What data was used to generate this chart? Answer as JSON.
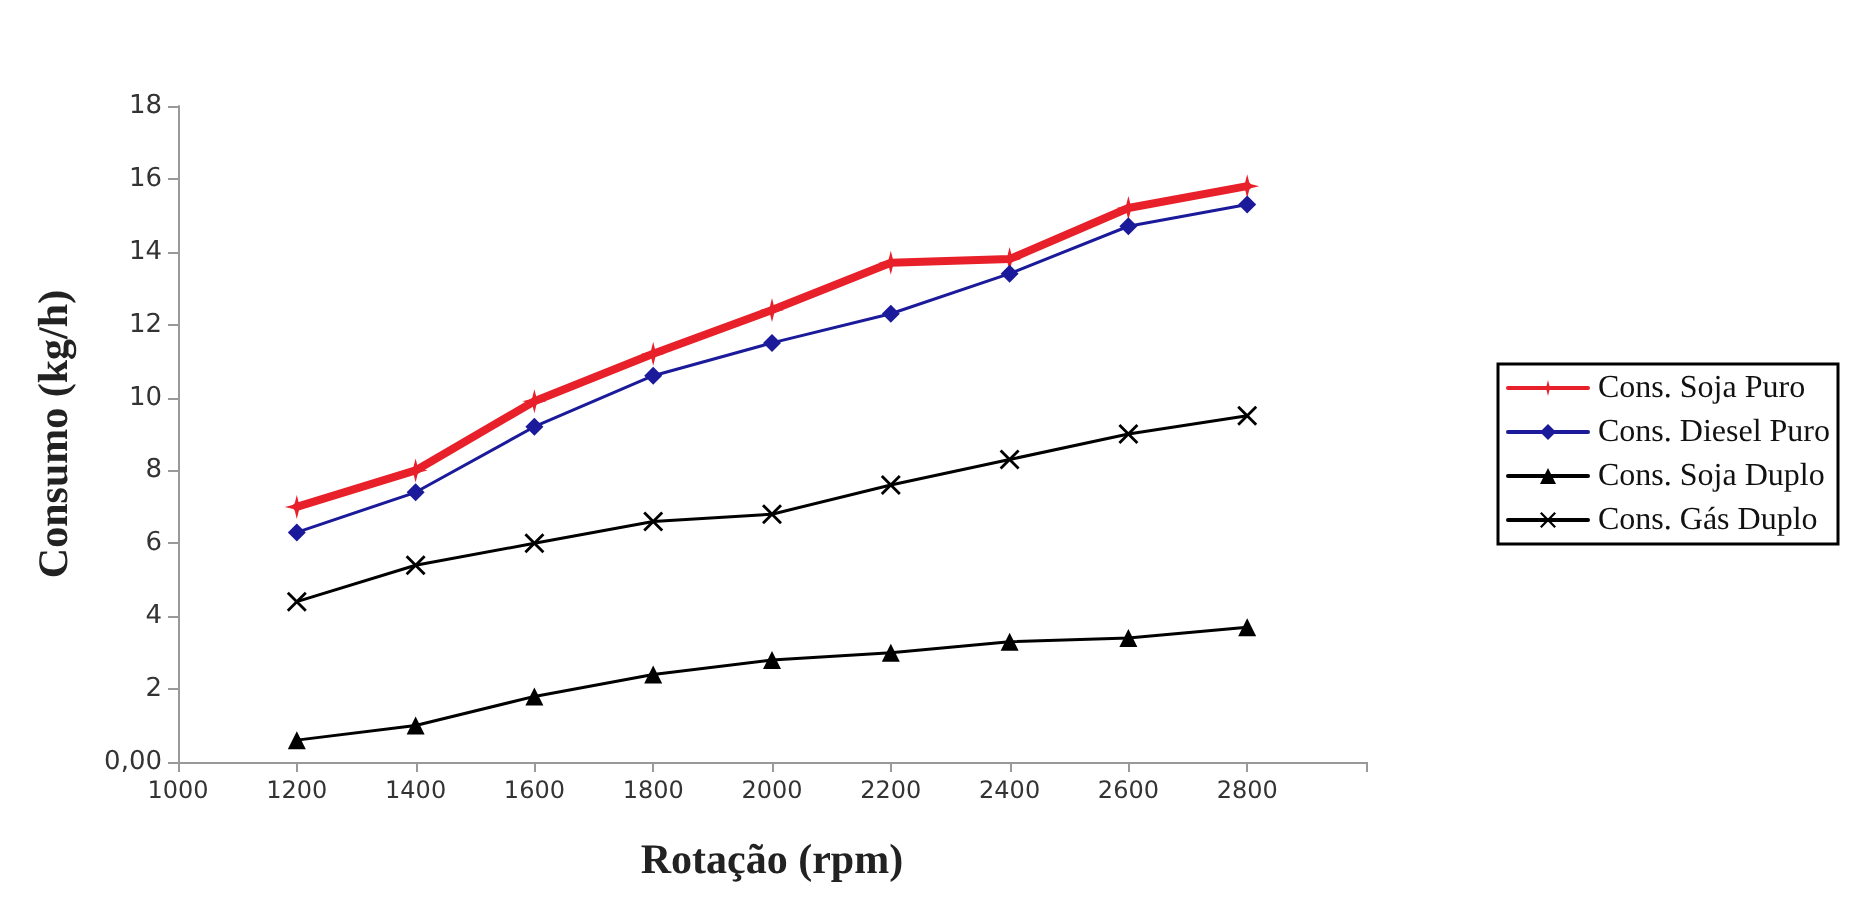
{
  "chart_data": {
    "type": "line",
    "xlabel": "Rotação (rpm)",
    "ylabel": "Consumo (kg/h)",
    "x": [
      1200,
      1400,
      1600,
      1800,
      2000,
      2200,
      2400,
      2600,
      2800
    ],
    "xlim": [
      1000,
      3000
    ],
    "xticks": [
      1000,
      1200,
      1400,
      1600,
      1800,
      2000,
      2200,
      2400,
      2600,
      2800,
      {
        "value": 3000,
        "label": null
      }
    ],
    "ylim": [
      0,
      18
    ],
    "yticks": [
      {
        "value": 0,
        "label": "0,00"
      },
      2,
      4,
      6,
      8,
      10,
      12,
      14,
      16,
      18
    ],
    "grid": false,
    "legend": "right",
    "series": [
      {
        "name": "Cons. Soja Puro",
        "color": "#e8202a",
        "marker": "star",
        "values": [
          7.0,
          8.0,
          9.9,
          11.2,
          12.4,
          13.7,
          13.8,
          15.2,
          15.8
        ]
      },
      {
        "name": "Cons. Diesel Puro",
        "color": "#1a1a9a",
        "marker": "diamond",
        "values": [
          6.3,
          7.4,
          9.2,
          10.6,
          11.5,
          12.3,
          13.4,
          14.7,
          15.3
        ]
      },
      {
        "name": "Cons. Soja Duplo",
        "color": "#000000",
        "marker": "triangle",
        "values": [
          0.6,
          1.0,
          1.8,
          2.4,
          2.8,
          3.0,
          3.3,
          3.4,
          3.7
        ]
      },
      {
        "name": "Cons. Gás Duplo",
        "color": "#000000",
        "marker": "cross",
        "values": [
          4.4,
          5.4,
          6.0,
          6.6,
          6.8,
          7.6,
          8.3,
          9.0,
          9.5
        ]
      }
    ]
  }
}
